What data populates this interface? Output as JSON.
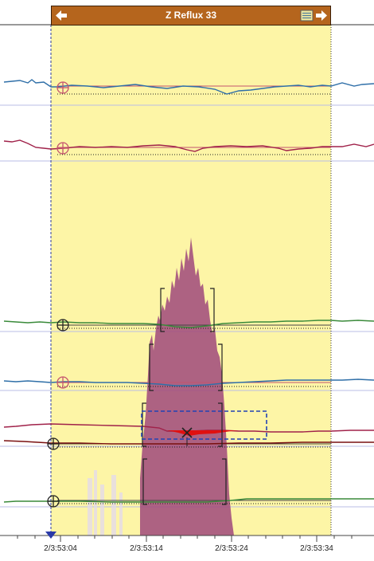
{
  "header": {
    "title": "Z Reflux 33"
  },
  "time_axis": {
    "ticks": [
      "2/3:53:04",
      "2/3:53:14",
      "2/3:53:24",
      "2/3:53:34"
    ]
  },
  "colors": {
    "highlight_region": "#fdf5a6",
    "header_bar": "#b5651d",
    "impedance_fill": "#a24d7d",
    "trace_blue": "#2f6fa8",
    "trace_green": "#3a8a3a",
    "trace_red": "#a0224a",
    "trace_darkred": "#7a1010",
    "marker_pink": "#c4546e",
    "selection_box": "#2242b4"
  },
  "icons": {
    "prev": "left-arrow-icon",
    "next": "right-arrow-icon",
    "list": "list-icon",
    "cursor": "down-triangle-icon"
  }
}
